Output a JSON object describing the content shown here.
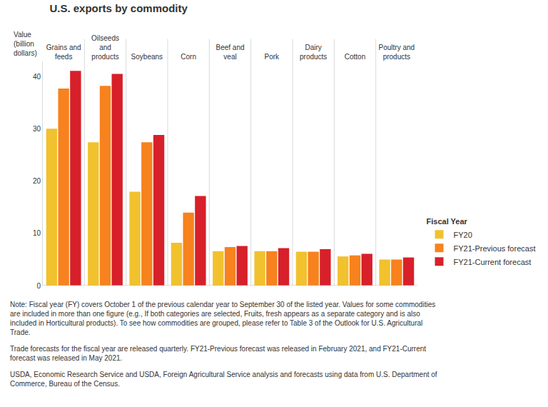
{
  "chart_data": {
    "type": "bar",
    "title": "U.S. exports by commodity",
    "ylabel": "Value (billion dollars)",
    "categories": [
      "Grains and feeds",
      "Oilseeds and products",
      "Soybeans",
      "Corn",
      "Beef and veal",
      "Pork",
      "Dairy products",
      "Cotton",
      "Poultry and products"
    ],
    "series": [
      {
        "name": "FY20",
        "color": "#f2c12e",
        "values": [
          30.1,
          27.5,
          18.0,
          8.2,
          6.6,
          6.6,
          6.5,
          5.6,
          5.0
        ]
      },
      {
        "name": "FY21-Previous forecast",
        "color": "#f7821e",
        "values": [
          37.8,
          38.3,
          27.5,
          14.0,
          7.4,
          6.6,
          6.5,
          5.8,
          5.0
        ]
      },
      {
        "name": "FY21-Current forecast",
        "color": "#d7202a",
        "values": [
          41.2,
          40.6,
          28.9,
          17.2,
          7.6,
          7.2,
          7.0,
          6.1,
          5.4
        ]
      }
    ],
    "legend_title": "Fiscal Year",
    "ylim": [
      0,
      43
    ],
    "yticks": [
      0,
      10,
      20,
      30,
      40
    ],
    "grid": false,
    "legend": "right",
    "annotations": [
      "Note: Fiscal year (FY) covers October 1 of the previous calendar year to September 30 of the listed year. Values for some commodities are included in more than one figure (e.g., If both categories are selected, Fruits, fresh appears as a separate category and is also included in Horticultural products). To see how commodities are grouped, please refer to Table 3 of the Outlook for U.S. Agricultural Trade.",
      "Trade forecasts for the fiscal year are released quarterly. FY21-Previous forecast was released in February 2021, and FY21-Current forecast was released in May 2021.",
      "USDA, Economic Research Service and USDA, Foreign Agricultural Service analysis and forecasts using data from U.S. Department of Commerce, Bureau of the Census."
    ]
  }
}
